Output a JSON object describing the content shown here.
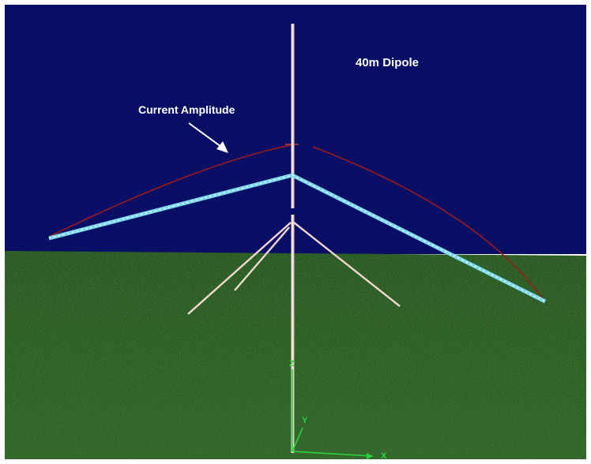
{
  "title": "40m Dipole",
  "annotation": "Current Amplitude",
  "axes": {
    "x_label": "X",
    "y_label": "Y",
    "z_label": "Z"
  },
  "colors": {
    "sky": "#0a0f66",
    "ground": "#2a5a22",
    "dipole_wire": "#7fd8ee",
    "current_curve": "#9c1b1b",
    "mast": "#f2e6e2",
    "guy_wires": "#f4d8cf",
    "axes": "#27d43d"
  }
}
